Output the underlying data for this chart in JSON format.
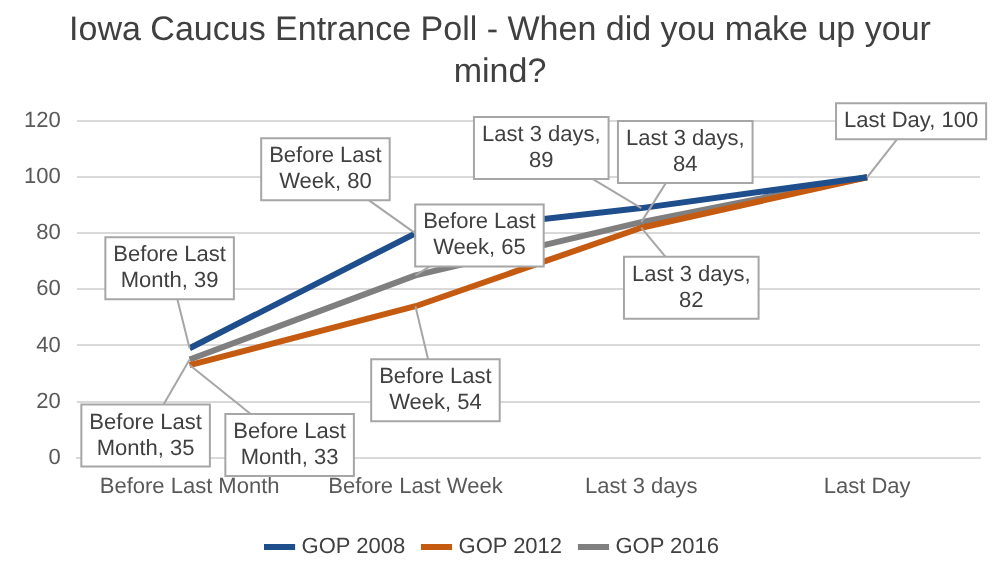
{
  "chart_data": {
    "type": "line",
    "title": "Iowa Caucus Entrance Poll - When did you make up your mind?",
    "categories": [
      "Before Last Month",
      "Before Last Week",
      "Last 3 days",
      "Last Day"
    ],
    "series": [
      {
        "name": "GOP 2008",
        "color": "#1f4e8c",
        "values": [
          39,
          80,
          89,
          100
        ],
        "value_labels": [
          "Before Last Month, 39",
          "Before Last Week, 80",
          "Last 3 days, 89",
          null
        ]
      },
      {
        "name": "GOP 2012",
        "color": "#c55a11",
        "values": [
          33,
          54,
          82,
          100
        ],
        "value_labels": [
          "Before Last Month, 33",
          "Before Last Week, 54",
          "Last 3 days, 82",
          null
        ]
      },
      {
        "name": "GOP 2016",
        "color": "#7f7f7f",
        "values": [
          35,
          65,
          84,
          100
        ],
        "value_labels": [
          "Before Last Month, 35",
          "Before Last Week, 65",
          "Last 3 days, 84",
          "Last Day, 100"
        ]
      }
    ],
    "ylim": [
      0,
      120
    ],
    "yticks": [
      0,
      20,
      40,
      60,
      80,
      100,
      120
    ],
    "grid": "y",
    "legend": "bottom",
    "marker": "none",
    "line_style": "solid"
  }
}
